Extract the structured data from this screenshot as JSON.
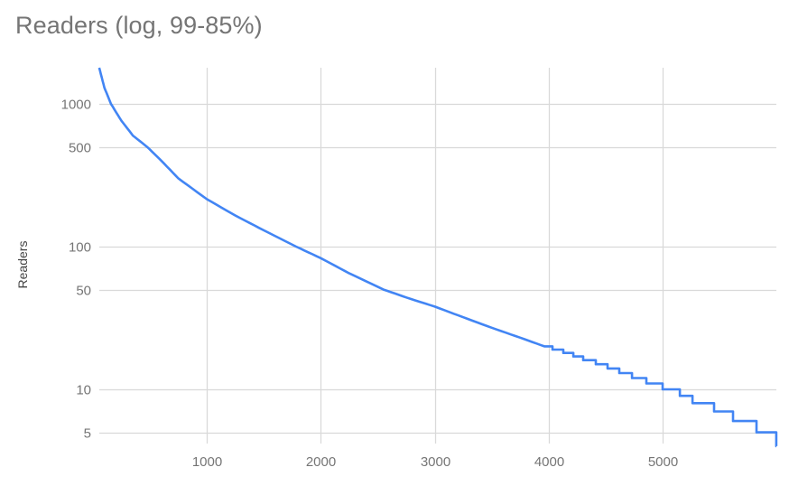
{
  "chart_data": {
    "type": "line",
    "title": "Readers (log, 99-85%)",
    "xlabel": "",
    "ylabel": "Readers",
    "y_scale": "log",
    "xlim": [
      55,
      6000
    ],
    "ylim": [
      4,
      1800
    ],
    "grid": true,
    "legend": "none",
    "x_ticks": [
      1000,
      2000,
      3000,
      4000,
      5000
    ],
    "x_tick_labels": [
      "1000",
      "2000",
      "3000",
      "4000",
      "5000"
    ],
    "y_ticks": [
      5,
      10,
      50,
      100,
      500,
      1000
    ],
    "y_tick_labels": [
      "5",
      "10",
      "50",
      "100",
      "500",
      "1000"
    ],
    "line_color": "#4285f4",
    "series": [
      {
        "name": "Readers",
        "points": [
          [
            55,
            1790
          ],
          [
            100,
            1300
          ],
          [
            158,
            1000
          ],
          [
            250,
            760
          ],
          [
            350,
            600
          ],
          [
            475,
            500
          ],
          [
            600,
            400
          ],
          [
            750,
            300
          ],
          [
            1000,
            215
          ],
          [
            1250,
            165
          ],
          [
            1500,
            130
          ],
          [
            1783,
            100
          ],
          [
            2000,
            83
          ],
          [
            2250,
            65
          ],
          [
            2551,
            50
          ],
          [
            2750,
            44
          ],
          [
            3000,
            38
          ],
          [
            3250,
            32
          ],
          [
            3500,
            27
          ],
          [
            3750,
            23
          ],
          [
            3962,
            20
          ]
        ],
        "steps": [
          [
            3962,
            20
          ],
          [
            4033,
            19
          ],
          [
            4128,
            18
          ],
          [
            4216,
            17
          ],
          [
            4303,
            16
          ],
          [
            4414,
            15
          ],
          [
            4517,
            14
          ],
          [
            4620,
            13
          ],
          [
            4731,
            12
          ],
          [
            4857,
            11
          ],
          [
            5000,
            10
          ],
          [
            5151,
            9
          ],
          [
            5262,
            8
          ],
          [
            5452,
            7
          ],
          [
            5618,
            6
          ],
          [
            5824,
            5
          ],
          [
            5998,
            4
          ]
        ]
      }
    ]
  }
}
